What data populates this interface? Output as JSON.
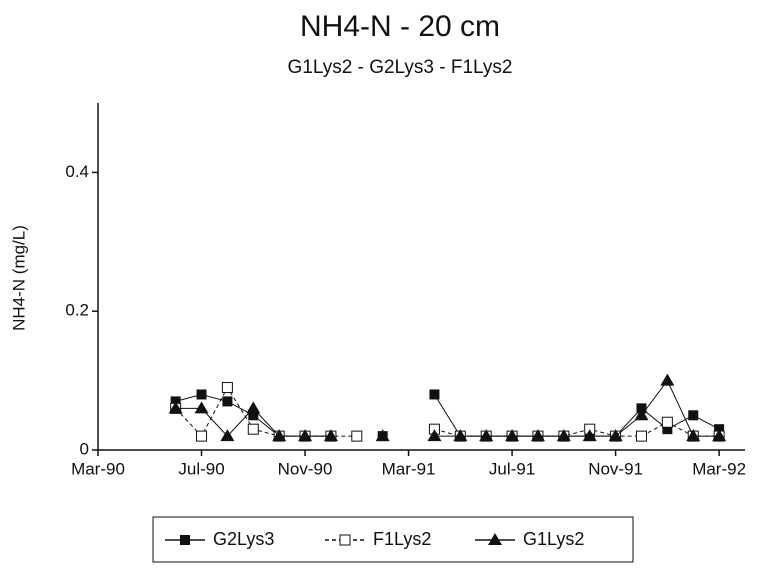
{
  "chart_data": {
    "type": "line",
    "title": "NH4-N - 20 cm",
    "subtitle": "G1Lys2 - G2Lys3 - F1Lys2",
    "y_label": "NH4-N (mg/L)",
    "x": [
      "1990-06",
      "1990-07",
      "1990-08",
      "1990-09",
      "1990-10",
      "1990-11",
      "1990-12",
      "1991-01",
      "1991-02",
      "1991-03",
      "1991-04",
      "1991-05",
      "1991-06",
      "1991-07",
      "1991-08",
      "1991-09",
      "1991-10",
      "1991-11",
      "1991-12",
      "1992-01",
      "1992-02",
      "1992-03"
    ],
    "xlim": [
      "1990-03",
      "1992-04"
    ],
    "xticks": [
      {
        "value": "1990-03",
        "label": "Mar-90"
      },
      {
        "value": "1990-07",
        "label": "Jul-90"
      },
      {
        "value": "1990-11",
        "label": "Nov-90"
      },
      {
        "value": "1991-03",
        "label": "Mar-91"
      },
      {
        "value": "1991-07",
        "label": "Jul-91"
      },
      {
        "value": "1991-11",
        "label": "Nov-91"
      },
      {
        "value": "1992-03",
        "label": "Mar-92"
      }
    ],
    "ylim": [
      0,
      0.5
    ],
    "yticks": [
      0,
      0.2,
      0.4
    ],
    "grid": false,
    "legend": "bottom",
    "series": [
      {
        "name": "G2Lys3",
        "color": "#111111",
        "marker": "square-filled",
        "dash": "solid",
        "values": [
          0.07,
          0.08,
          0.07,
          0.05,
          0.02,
          0.02,
          0.02,
          null,
          0.02,
          null,
          0.08,
          0.02,
          0.02,
          0.02,
          0.02,
          0.02,
          0.02,
          0.02,
          0.06,
          0.03,
          0.05,
          0.03
        ]
      },
      {
        "name": "F1Lys2",
        "color": "#111111",
        "marker": "square-open",
        "dash": "dashed",
        "values": [
          0.06,
          0.02,
          0.09,
          0.03,
          0.02,
          0.02,
          0.02,
          0.02,
          null,
          null,
          0.03,
          0.02,
          0.02,
          0.02,
          0.02,
          0.02,
          0.03,
          0.02,
          0.02,
          0.04,
          0.02,
          0.02
        ]
      },
      {
        "name": "G1Lys2",
        "color": "#111111",
        "marker": "triangle-filled",
        "dash": "solid",
        "values": [
          0.06,
          0.06,
          0.02,
          0.06,
          0.02,
          0.02,
          0.02,
          null,
          0.02,
          null,
          0.02,
          0.02,
          0.02,
          0.02,
          0.02,
          0.02,
          0.02,
          0.02,
          0.05,
          0.1,
          0.02,
          0.02
        ]
      }
    ]
  }
}
